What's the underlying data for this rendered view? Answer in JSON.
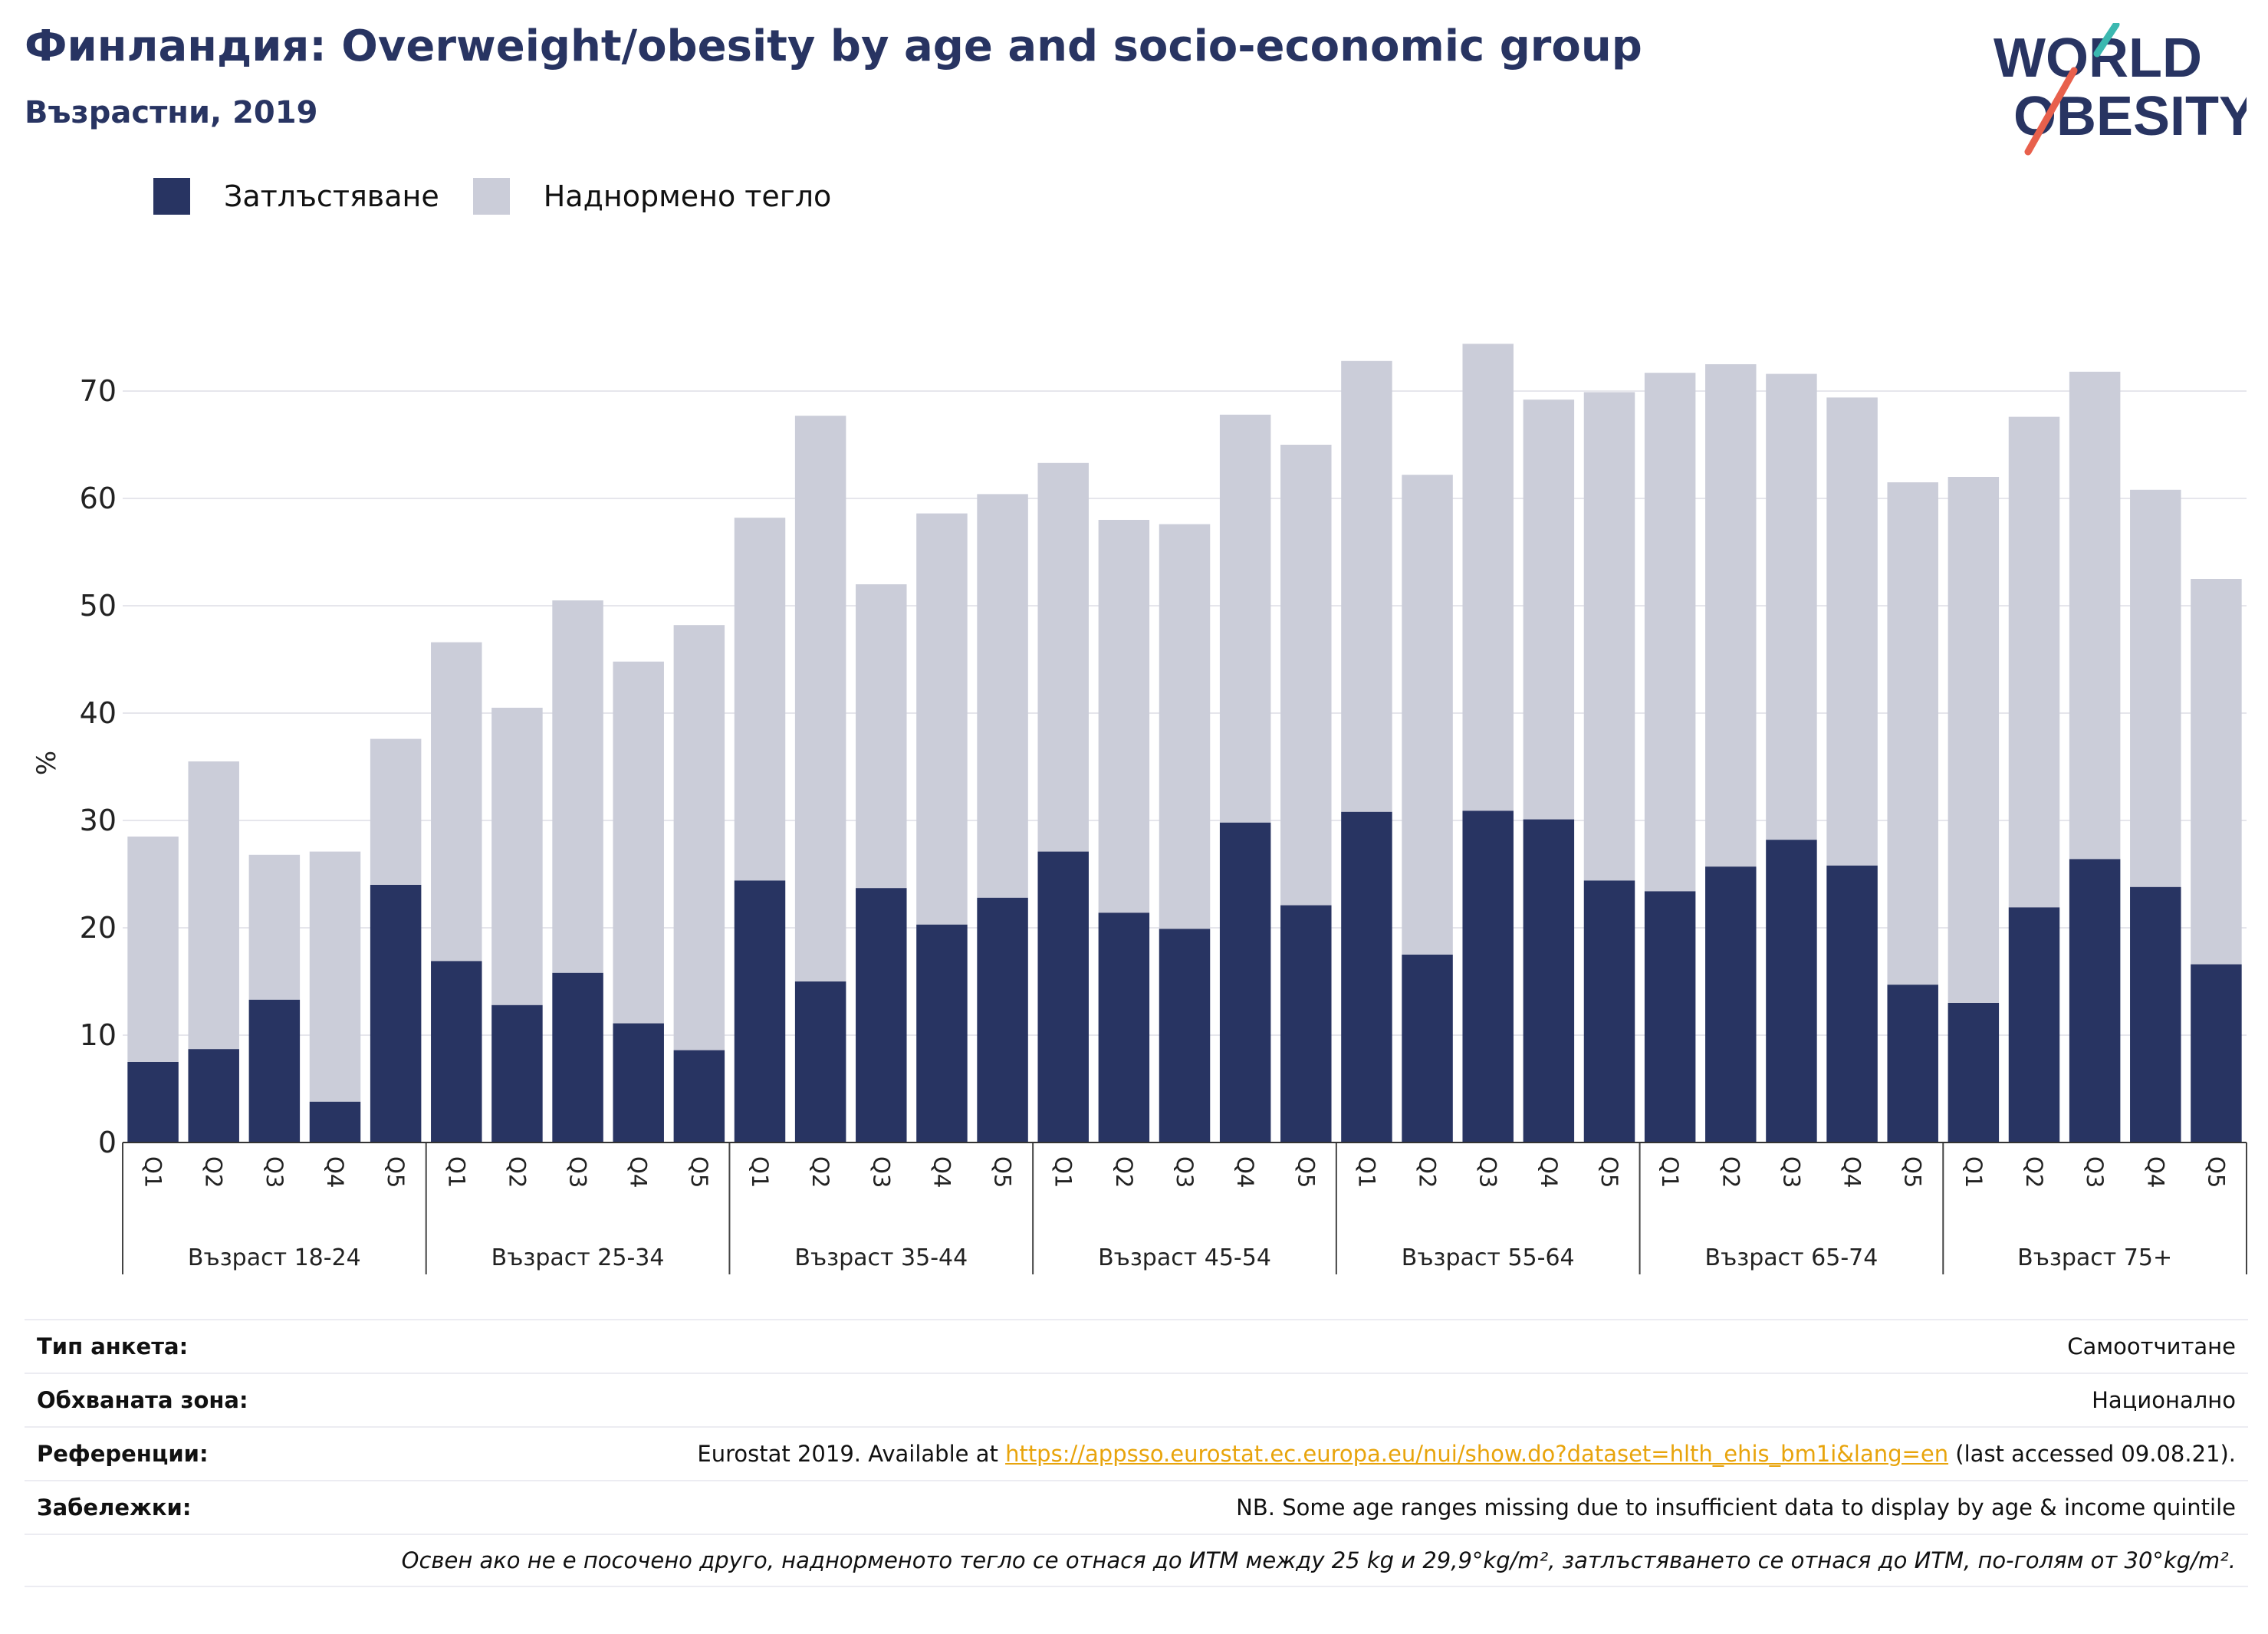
{
  "header": {
    "title": "Финландия: Overweight/obesity by age and socio-economic group",
    "subtitle": "Възрастни, 2019"
  },
  "logo": {
    "line1": "WORLD",
    "line2": "OBESITY"
  },
  "colors": {
    "obesity": "#283462",
    "overweight": "#cbcdd9",
    "text": "#283462",
    "link": "#e8a40c",
    "logo_teal": "#3bb8b0",
    "logo_red": "#e8604c"
  },
  "legend": {
    "obesity_label": "Затлъстяване",
    "overweight_label": "Наднормено тегло"
  },
  "chart_data": {
    "type": "bar",
    "stacked": true,
    "ylabel": "%",
    "ylim": [
      0,
      75
    ],
    "yticks": [
      0,
      10,
      20,
      30,
      40,
      50,
      60,
      70
    ],
    "grid": true,
    "legend_position": "top-left",
    "quintiles": [
      "Q1",
      "Q2",
      "Q3",
      "Q4",
      "Q5"
    ],
    "groups": [
      {
        "label": "Възраст 18-24",
        "obesity": [
          7.5,
          8.7,
          13.3,
          3.8,
          24.0
        ],
        "total": [
          28.5,
          35.5,
          26.8,
          27.1,
          37.6
        ]
      },
      {
        "label": "Възраст 25-34",
        "obesity": [
          16.9,
          12.8,
          15.8,
          11.1,
          8.6
        ],
        "total": [
          46.6,
          40.5,
          50.5,
          44.8,
          48.2
        ]
      },
      {
        "label": "Възраст 35-44",
        "obesity": [
          24.4,
          15.0,
          23.7,
          20.3,
          22.8
        ],
        "total": [
          58.2,
          67.7,
          52.0,
          58.6,
          60.4
        ]
      },
      {
        "label": "Възраст 45-54",
        "obesity": [
          27.1,
          21.4,
          19.9,
          29.8,
          22.1
        ],
        "total": [
          63.3,
          58.0,
          57.6,
          67.8,
          65.0
        ]
      },
      {
        "label": "Възраст 55-64",
        "obesity": [
          30.8,
          17.5,
          30.9,
          30.1,
          24.4
        ],
        "total": [
          72.8,
          62.2,
          74.4,
          69.2,
          69.9
        ]
      },
      {
        "label": "Възраст 65-74",
        "obesity": [
          23.4,
          25.7,
          28.2,
          25.8,
          14.7
        ],
        "total": [
          71.7,
          72.5,
          71.6,
          69.4,
          61.5
        ]
      },
      {
        "label": "Възраст 75+",
        "obesity": [
          13.0,
          21.9,
          26.4,
          23.8,
          16.6
        ],
        "total": [
          62.0,
          67.6,
          71.8,
          60.8,
          52.5
        ]
      }
    ]
  },
  "info": {
    "survey_label": "Тип анкета:",
    "survey_value": "Самоотчитане",
    "area_label": "Обхваната зона:",
    "area_value": "Национално",
    "refs_label": "Референции:",
    "refs_prefix": "Eurostat 2019. Available at ",
    "refs_link": "https://appsso.eurostat.ec.europa.eu/nui/show.do?dataset=hlth_ehis_bm1i&lang=en",
    "refs_suffix": " (last accessed 09.08.21).",
    "notes_label": "Забележки:",
    "notes_value": "NB. Some age ranges missing due to insufficient data to display by age & income quintile",
    "definition": "Освен ако не е посочено друго, наднорменото тегло се отнася до ИТМ между 25 kg и 29,9°kg/m², затлъстяването се отнася до ИТМ, по-голям от 30°kg/m²."
  }
}
